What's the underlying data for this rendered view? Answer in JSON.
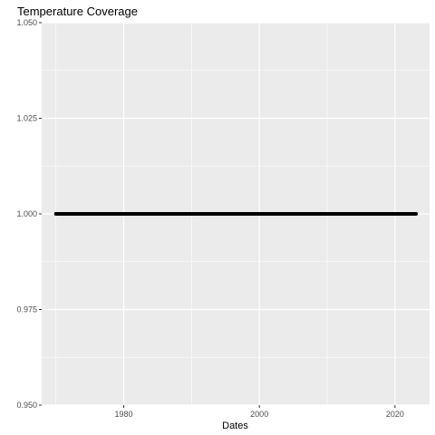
{
  "chart_data": {
    "type": "scatter",
    "title": "Temperature Coverage",
    "xlabel": "Dates",
    "ylabel": "",
    "x_range": [
      1967.9,
      2025.1
    ],
    "ylim": [
      0.95,
      1.05
    ],
    "x_ticks": [
      1980,
      2000,
      2020
    ],
    "x_tick_labels": [
      "1980",
      "2000",
      "2020"
    ],
    "x_minor_ticks": [
      1970,
      1990,
      2010
    ],
    "y_ticks": [
      0.95,
      0.975,
      1.0,
      1.025,
      1.05
    ],
    "y_tick_labels": [
      "0.950",
      "0.975",
      "1.000",
      "1.025",
      "1.050"
    ],
    "grid": true,
    "series": [
      {
        "x_start": 1970.0,
        "x_end": 2023.1,
        "y": 1.0,
        "note_values": "daily points, all equal to 1.000"
      }
    ],
    "colors": {
      "panel_background": "#ebebeb",
      "grid": "#ffffff",
      "points": "#000000"
    }
  }
}
